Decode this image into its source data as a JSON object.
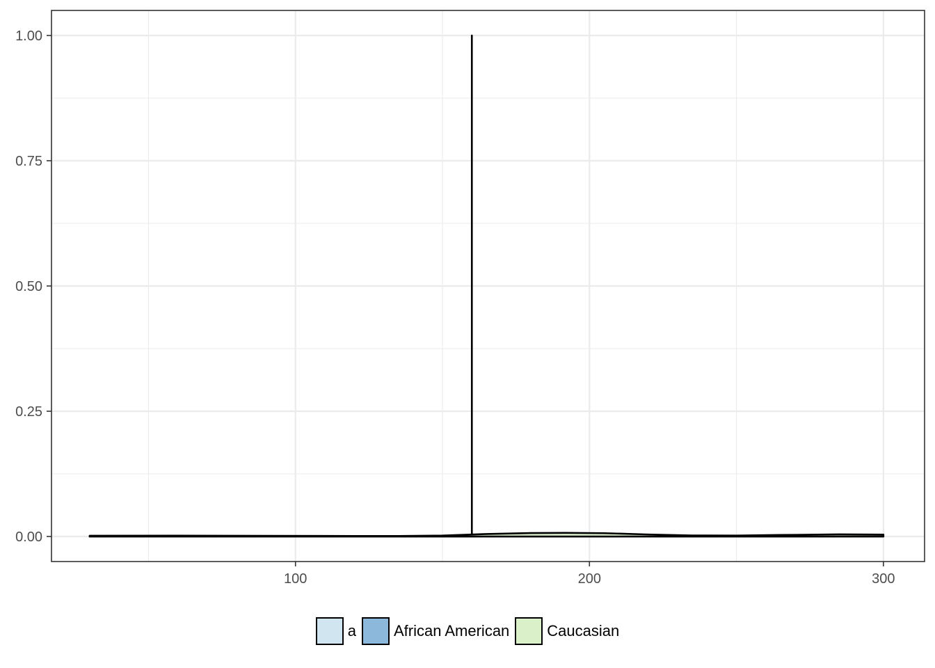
{
  "chart_data": {
    "type": "area",
    "title": "",
    "xlabel": "",
    "ylabel": "",
    "xlim": [
      17,
      314
    ],
    "ylim": [
      -0.05,
      1.05
    ],
    "x_ticks": [
      100,
      200,
      300
    ],
    "x_tick_labels": [
      "100",
      "200",
      "300"
    ],
    "y_ticks": [
      0,
      0.25,
      0.5,
      0.75,
      1
    ],
    "y_tick_labels": [
      "0.00",
      "0.25",
      "0.50",
      "0.75",
      "1.00"
    ],
    "x_minor_ticks": [
      50,
      150,
      250
    ],
    "y_minor_ticks": [
      0.125,
      0.375,
      0.625,
      0.875
    ],
    "grid": true,
    "legend_position": "bottom",
    "series": [
      {
        "name": "a",
        "color": "#d1e5f0",
        "points": [
          [
            30,
            0.0
          ],
          [
            300,
            0.0
          ]
        ]
      },
      {
        "name": "African American",
        "color": "#8cb8db",
        "points": [
          [
            160,
            0.0
          ],
          [
            160,
            1.0
          ]
        ]
      },
      {
        "name": "Caucasian",
        "color": "#d9f0c8",
        "points": [
          [
            30,
            0.0015
          ],
          [
            60,
            0.0016
          ],
          [
            90,
            0.0014
          ],
          [
            110,
            0.0011
          ],
          [
            135,
            0.0009
          ],
          [
            150,
            0.0018
          ],
          [
            165,
            0.005
          ],
          [
            180,
            0.0068
          ],
          [
            192,
            0.0072
          ],
          [
            205,
            0.0066
          ],
          [
            220,
            0.004
          ],
          [
            235,
            0.002
          ],
          [
            250,
            0.0018
          ],
          [
            265,
            0.003
          ],
          [
            285,
            0.0042
          ],
          [
            300,
            0.0038
          ]
        ]
      }
    ]
  }
}
